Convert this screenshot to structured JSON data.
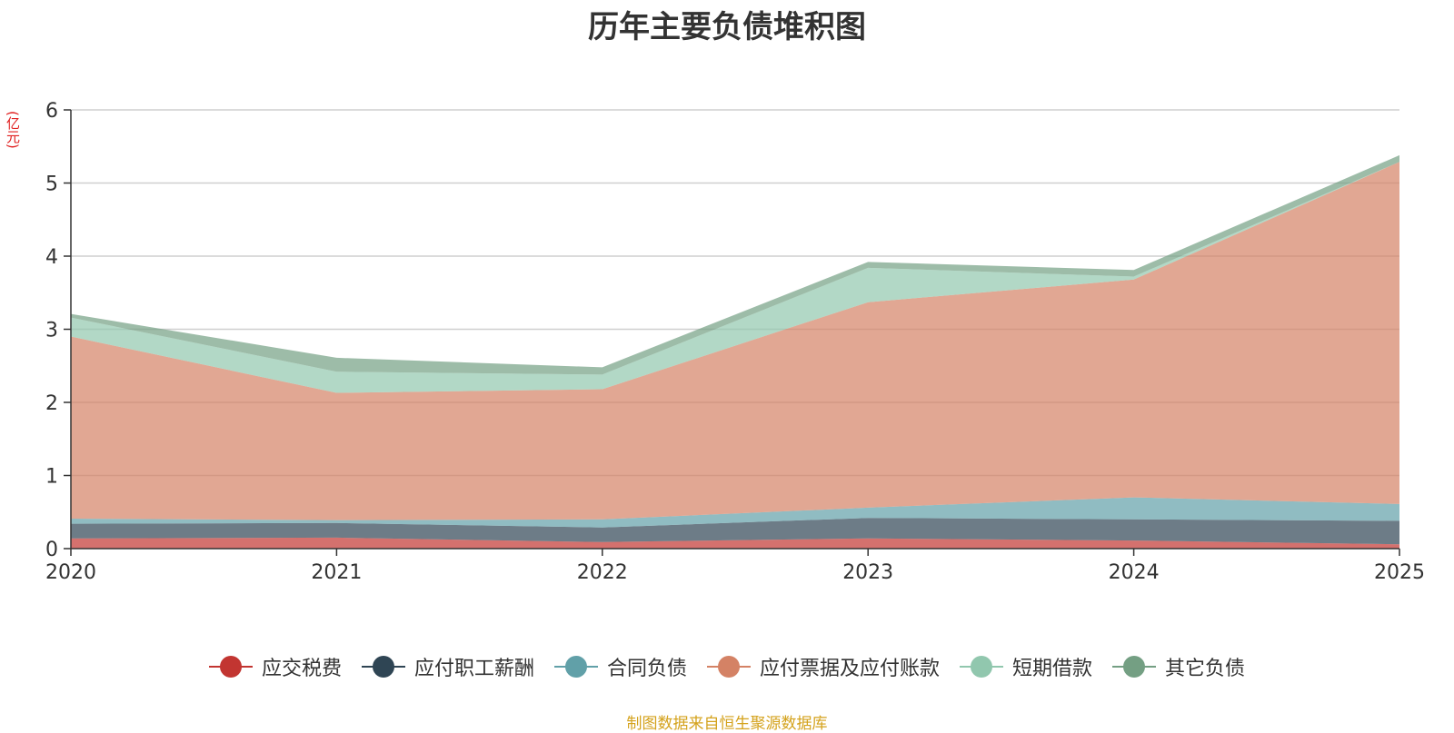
{
  "chart_data": {
    "type": "area",
    "stacked": true,
    "title": "历年主要负债堆积图",
    "unit": "(亿元)",
    "x": [
      "2020",
      "2021",
      "2022",
      "2023",
      "2024",
      "2025"
    ],
    "ylim": [
      0,
      6
    ],
    "yticks": [
      0,
      1,
      2,
      3,
      4,
      5,
      6
    ],
    "grid": true,
    "legend_position": "bottom",
    "series": [
      {
        "name": "应交税费",
        "color": "#c23531",
        "values": [
          0.14,
          0.15,
          0.09,
          0.14,
          0.11,
          0.06
        ]
      },
      {
        "name": "应付职工薪酬",
        "color": "#2f4554",
        "values": [
          0.2,
          0.2,
          0.2,
          0.28,
          0.29,
          0.32
        ]
      },
      {
        "name": "合同负债",
        "color": "#61a0a8",
        "values": [
          0.07,
          0.04,
          0.11,
          0.14,
          0.3,
          0.23
        ]
      },
      {
        "name": "应付票据及应付账款",
        "color": "#d48265",
        "values": [
          2.49,
          1.74,
          1.78,
          2.81,
          2.98,
          4.68
        ]
      },
      {
        "name": "短期借款",
        "color": "#91c7ae",
        "values": [
          0.26,
          0.29,
          0.2,
          0.47,
          0.04,
          0.0
        ]
      },
      {
        "name": "其它负债",
        "color": "#749f83",
        "values": [
          0.05,
          0.19,
          0.1,
          0.08,
          0.09,
          0.09
        ]
      }
    ]
  },
  "source_note": "制图数据来自恒生聚源数据库"
}
